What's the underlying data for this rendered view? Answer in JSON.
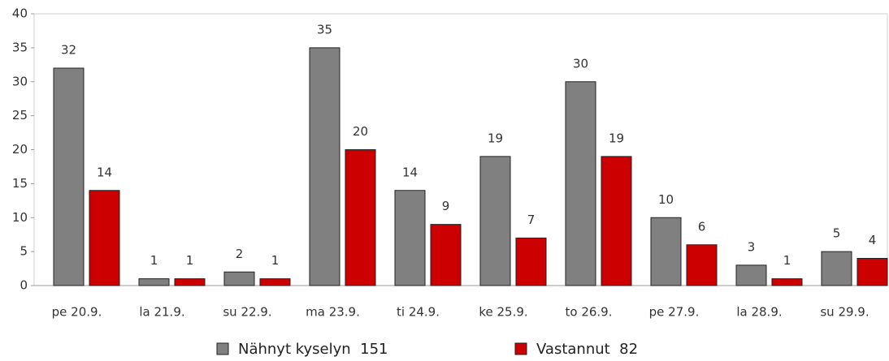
{
  "chart_data": {
    "type": "bar",
    "categories": [
      "pe 20.9.",
      "la 21.9.",
      "su 22.9.",
      "ma 23.9.",
      "ti 24.9.",
      "ke 25.9.",
      "to 26.9.",
      "pe 27.9.",
      "la 28.9.",
      "su 29.9."
    ],
    "series": [
      {
        "name": "Nähnyt kyselyn  151",
        "color": "#808080",
        "values": [
          32,
          1,
          2,
          35,
          14,
          19,
          30,
          10,
          3,
          5
        ]
      },
      {
        "name": "Vastannut  82",
        "color": "#cc0000",
        "values": [
          14,
          1,
          1,
          20,
          9,
          7,
          19,
          6,
          1,
          4
        ]
      }
    ],
    "ylim": [
      0,
      40
    ],
    "yticks": [
      0,
      5,
      10,
      15,
      20,
      25,
      30,
      35,
      40
    ],
    "grid": false,
    "legend": "bottom"
  }
}
